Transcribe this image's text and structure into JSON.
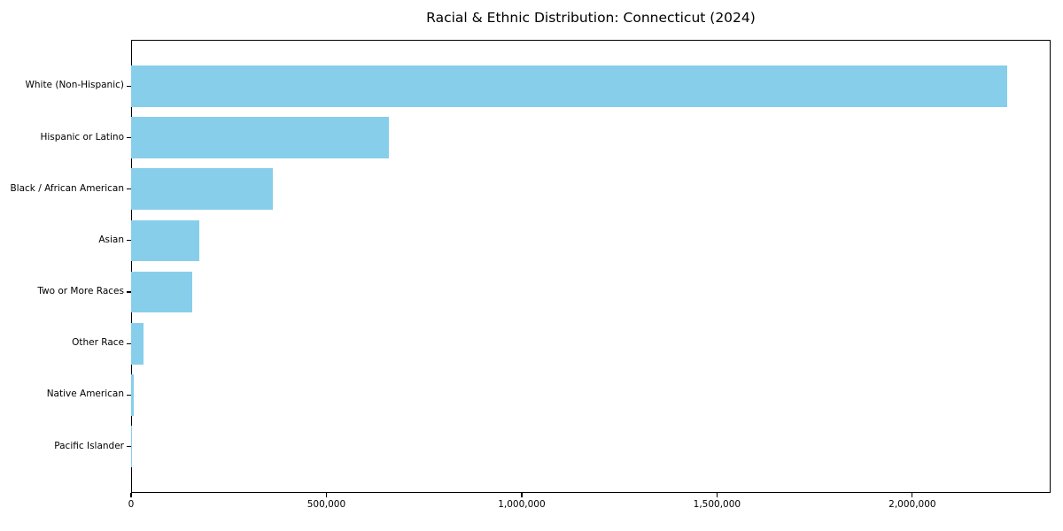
{
  "chart_data": {
    "type": "bar",
    "orientation": "horizontal",
    "title": "Racial & Ethnic Distribution: Connecticut (2024)",
    "categories": [
      "White (Non-Hispanic)",
      "Hispanic or Latino",
      "Black / African American",
      "Asian",
      "Two or More Races",
      "Other Race",
      "Native American",
      "Pacific Islander"
    ],
    "values": [
      2242000,
      660000,
      362000,
      175000,
      156000,
      32000,
      6000,
      1500
    ],
    "xlabel": "",
    "ylabel": "",
    "xlim": [
      0,
      2354100
    ],
    "xticks": [
      0,
      500000,
      1000000,
      1500000,
      2000000
    ],
    "xtick_labels": [
      "0",
      "500,000",
      "1,000,000",
      "1,500,000",
      "2,000,000"
    ],
    "grid": false,
    "legend": null,
    "bar_color": "#87CEEB",
    "axis_color": "#000000",
    "text_color": "#000000",
    "background_color": "#ffffff"
  }
}
